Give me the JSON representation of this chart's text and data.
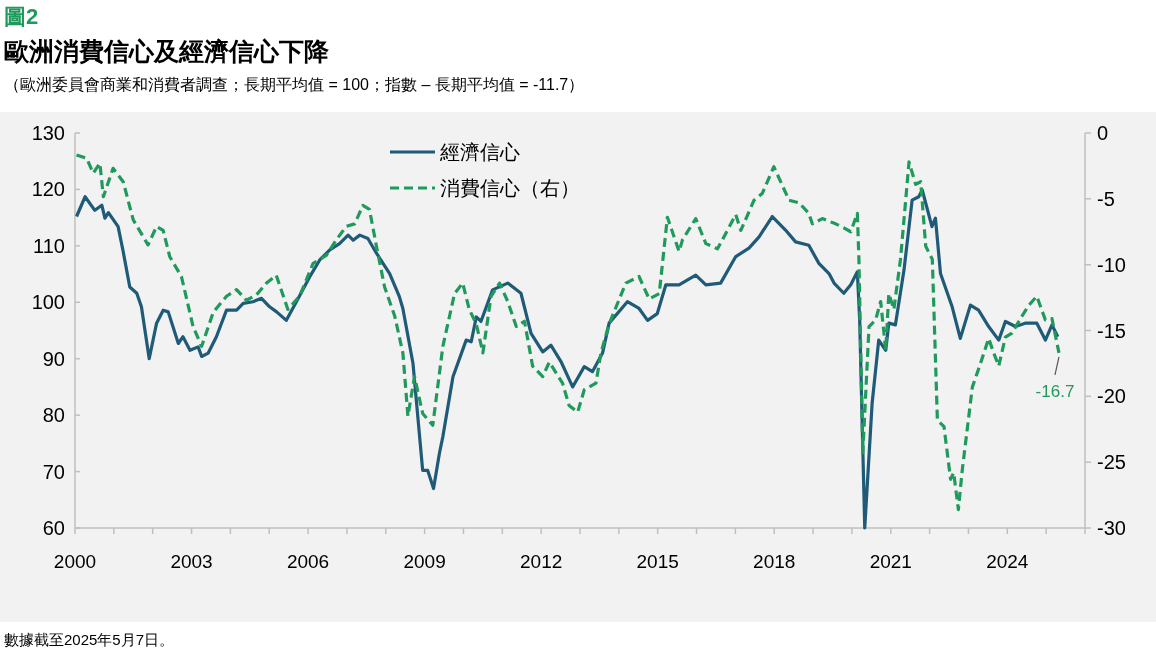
{
  "chart_data": {
    "type": "line",
    "title": "歐洲消費信心及經濟信心下降",
    "subtitle": "（歐洲委員會商業和消費者調查；長期平均值 = 100；指數 – 長期平均值 = -11.7）",
    "annotations": [
      "圖2",
      "-16.7",
      "數據截至2025年5月7日。"
    ],
    "xlim": [
      2000,
      2026
    ],
    "xticks": [
      2000,
      {
        "value": 2001,
        "label": null
      },
      {
        "value": 2002,
        "label": null
      },
      2003,
      {
        "value": 2004,
        "label": null
      },
      {
        "value": 2005,
        "label": null
      },
      2006,
      {
        "value": 2007,
        "label": null
      },
      {
        "value": 2008,
        "label": null
      },
      2009,
      {
        "value": 2010,
        "label": null
      },
      {
        "value": 2011,
        "label": null
      },
      2012,
      {
        "value": 2013,
        "label": null
      },
      {
        "value": 2014,
        "label": null
      },
      2015,
      {
        "value": 2016,
        "label": null
      },
      {
        "value": 2017,
        "label": null
      },
      2018,
      {
        "value": 2019,
        "label": null
      },
      {
        "value": 2020,
        "label": null
      },
      2021,
      {
        "value": 2022,
        "label": null
      },
      {
        "value": 2023,
        "label": null
      },
      2024,
      {
        "value": 2025,
        "label": null
      },
      {
        "value": 2026,
        "label": null
      }
    ],
    "ylim": [
      60,
      130
    ],
    "yticks": [
      60,
      70,
      80,
      90,
      100,
      110,
      120,
      130
    ],
    "y2lim": [
      -30,
      0
    ],
    "y2ticks": [
      -30,
      -25,
      -20,
      -15,
      -10,
      -5,
      0
    ],
    "legend": "top",
    "grid": false,
    "series": [
      {
        "name": "經濟信心",
        "color": "#1f5a78",
        "line_style": "solid",
        "x": [
          2000.04,
          2000.26,
          2000.51,
          2000.69,
          2000.77,
          2000.86,
          2001.11,
          2001.24,
          2001.41,
          2001.59,
          2001.71,
          2001.91,
          2002.1,
          2002.27,
          2002.4,
          2002.66,
          2002.78,
          2002.96,
          2003.17,
          2003.26,
          2003.43,
          2003.64,
          2003.9,
          2004.16,
          2004.33,
          2004.58,
          2004.8,
          2005.01,
          2005.19,
          2005.44,
          2005.7,
          2006.04,
          2006.3,
          2006.56,
          2006.81,
          2007.03,
          2007.16,
          2007.33,
          2007.54,
          2007.76,
          2008.1,
          2008.35,
          2008.44,
          2008.7,
          2008.95,
          2009.08,
          2009.23,
          2009.38,
          2009.47,
          2009.73,
          2010.07,
          2010.2,
          2010.33,
          2010.45,
          2010.75,
          2011.14,
          2011.48,
          2011.74,
          2012.04,
          2012.25,
          2012.51,
          2012.81,
          2013.11,
          2013.32,
          2013.58,
          2013.75,
          2014.22,
          2014.52,
          2014.74,
          2014.99,
          2015.21,
          2015.55,
          2015.98,
          2016.24,
          2016.62,
          2017.01,
          2017.35,
          2017.61,
          2017.95,
          2018.29,
          2018.55,
          2018.89,
          2019.15,
          2019.41,
          2019.54,
          2019.79,
          2019.97,
          2020.14,
          2020.2,
          2020.33,
          2020.52,
          2020.69,
          2020.87,
          2020.95,
          2021.12,
          2021.34,
          2021.55,
          2021.72,
          2021.81,
          2022.06,
          2022.15,
          2022.28,
          2022.58,
          2022.79,
          2023.05,
          2023.26,
          2023.52,
          2023.78,
          2023.95,
          2024.21,
          2024.46,
          2024.76,
          2024.98,
          2025.15,
          2025.3
        ],
        "values": [
          115.2,
          118.7,
          116.3,
          117.2,
          114.9,
          115.9,
          113.4,
          109,
          102.7,
          101.6,
          99.2,
          90,
          96.3,
          98.6,
          98.3,
          92.7,
          93.9,
          91.5,
          92.1,
          90.4,
          91,
          93.9,
          98.6,
          98.6,
          99.8,
          100.1,
          100.7,
          99.2,
          98.3,
          96.8,
          100.1,
          104.5,
          107.5,
          109.3,
          110.4,
          111.9,
          111,
          111.9,
          111.3,
          108.7,
          105.1,
          101,
          98.9,
          89.2,
          70.2,
          70.2,
          67,
          73.2,
          76.2,
          86.8,
          93.3,
          93,
          97.4,
          96.6,
          102.2,
          103.4,
          101.6,
          94.5,
          91.2,
          92.4,
          89.5,
          85,
          88.6,
          87.7,
          91,
          96.3,
          100.1,
          98.9,
          96.8,
          98,
          103.1,
          103.1,
          104.8,
          103.1,
          103.4,
          108.1,
          109.6,
          111.6,
          115.2,
          112.8,
          110.7,
          110.1,
          106.9,
          105.1,
          103.4,
          101.6,
          103.1,
          105.4,
          96.8,
          60,
          82.1,
          93.3,
          91.5,
          96.3,
          96,
          105.7,
          118.1,
          118.7,
          119.9,
          113.4,
          114.9,
          105.1,
          99.2,
          93.6,
          99.5,
          98.6,
          95.7,
          93.3,
          96.6,
          95.7,
          96.3,
          96.3,
          93.3,
          96,
          93.9
        ]
      },
      {
        "name": "消費信心（右）",
        "color": "#1f9a5c",
        "axis": "y2",
        "line_style": "dashed",
        "x": [
          2000.04,
          2000.3,
          2000.47,
          2000.64,
          2000.73,
          2000.98,
          2001.24,
          2001.5,
          2001.88,
          2002.1,
          2002.27,
          2002.44,
          2002.74,
          2003.04,
          2003.26,
          2003.56,
          2003.9,
          2004.16,
          2004.41,
          2004.67,
          2004.93,
          2005.18,
          2005.48,
          2005.78,
          2006.13,
          2006.47,
          2006.73,
          2006.98,
          2007.2,
          2007.41,
          2007.58,
          2007.76,
          2007.97,
          2008.23,
          2008.44,
          2008.57,
          2008.74,
          2008.95,
          2009.21,
          2009.47,
          2009.77,
          2009.98,
          2010.15,
          2010.33,
          2010.5,
          2010.71,
          2010.93,
          2011.14,
          2011.36,
          2011.57,
          2011.78,
          2012.04,
          2012.21,
          2012.55,
          2012.72,
          2012.94,
          2013.11,
          2013.41,
          2013.54,
          2013.75,
          2014.18,
          2014.52,
          2014.78,
          2015.04,
          2015.25,
          2015.55,
          2015.64,
          2015.98,
          2016.24,
          2016.54,
          2017.01,
          2017.14,
          2017.48,
          2017.69,
          2017.99,
          2018.38,
          2018.64,
          2018.89,
          2018.98,
          2019.24,
          2019.58,
          2019.79,
          2019.97,
          2020.14,
          2020.18,
          2020.28,
          2020.44,
          2020.61,
          2020.74,
          2020.87,
          2020.95,
          2021.08,
          2021.25,
          2021.47,
          2021.64,
          2021.77,
          2021.9,
          2022.07,
          2022.2,
          2022.37,
          2022.54,
          2022.62,
          2022.74,
          2022.84,
          2023.1,
          2023.31,
          2023.52,
          2023.65,
          2023.78,
          2023.95,
          2024.12,
          2024.38,
          2024.55,
          2024.76,
          2024.98,
          2025.15,
          2025.33
        ],
        "values": [
          -1.67,
          -1.92,
          -3.06,
          -2.3,
          -4.84,
          -2.68,
          -3.7,
          -6.6,
          -8.5,
          -7.1,
          -7.4,
          -9.4,
          -10.9,
          -14.7,
          -16.2,
          -13.6,
          -12.4,
          -11.9,
          -12.7,
          -12.3,
          -11.4,
          -10.8,
          -13.4,
          -12.4,
          -9.9,
          -9.3,
          -8.1,
          -7.1,
          -6.9,
          -5.5,
          -5.8,
          -8.6,
          -11.7,
          -13.9,
          -16.7,
          -21.5,
          -18.5,
          -21.3,
          -22.2,
          -16.2,
          -12.2,
          -11.4,
          -13.4,
          -14.5,
          -16.7,
          -12.4,
          -11.4,
          -12.8,
          -14.7,
          -14.3,
          -17.7,
          -18.5,
          -17.4,
          -19,
          -20.7,
          -21.2,
          -19.5,
          -19,
          -16.7,
          -14.5,
          -11.4,
          -10.9,
          -12.6,
          -12.2,
          -6.4,
          -9,
          -8.1,
          -6.5,
          -8.4,
          -8.8,
          -6.2,
          -7.4,
          -5.1,
          -4.6,
          -2.56,
          -5.1,
          -5.3,
          -6.1,
          -6.9,
          -6.5,
          -6.9,
          -7.2,
          -7.5,
          -6.1,
          -9.6,
          -24.3,
          -14.7,
          -14.2,
          -12.8,
          -16.5,
          -12.2,
          -13.4,
          -9.6,
          -2.2,
          -3.9,
          -3.7,
          -8.6,
          -9.6,
          -21.8,
          -22.3,
          -26.3,
          -25.8,
          -28.6,
          -25.6,
          -19.3,
          -17.5,
          -15.6,
          -16.7,
          -17.7,
          -15.5,
          -15.2,
          -13.9,
          -13.1,
          -12.4,
          -14.2,
          -14.1,
          -16.7
        ]
      }
    ]
  }
}
